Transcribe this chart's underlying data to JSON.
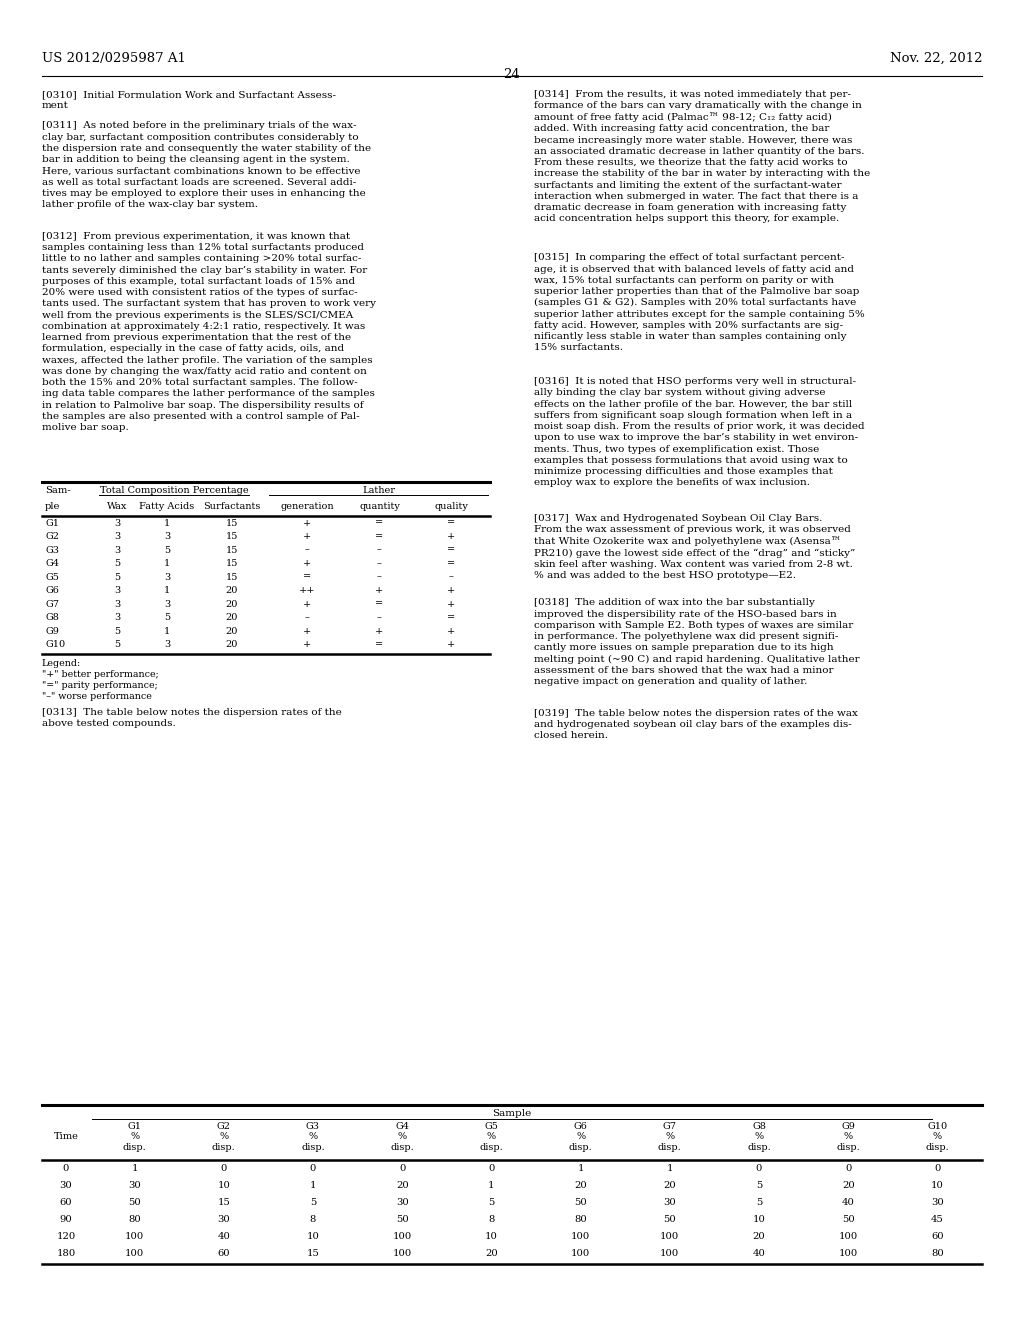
{
  "header_left": "US 2012/0295987 A1",
  "header_right": "Nov. 22, 2012",
  "page_number": "24",
  "bg_color": "#ffffff",
  "paragraphs_left": [
    "[0310]  Initial Formulation Work and Surfactant Assessment",
    "[0311]  As noted before in the preliminary trials of the wax-clay bar, surfactant composition contributes considerably to the dispersion rate and consequently the water stability of the bar in addition to being the cleansing agent in the system. Here, various surfactant combinations known to be effective as well as total surfactant loads are screened. Several additives may be employed to explore their uses in enhancing the lather profile of the wax-clay bar system.",
    "[0312]  From previous experimentation, it was known that samples containing less than 12% total surfactants produced little to no lather and samples containing >20% total surfactants severely diminished the clay bar’s stability in water. For purposes of this example, total surfactant loads of 15% and 20% were used with consistent ratios of the types of surfactants used. The surfactant system that has proven to work very well from the previous experiments is the SLES/SCI/CMEA combination at approximately 4:2:1 ratio, respectively. It was learned from previous experimentation that the rest of the formulation, especially in the case of fatty acids, oils, and waxes, affected the lather profile. The variation of the samples was done by changing the wax/fatty acid ratio and content on both the 15% and 20% total surfactant samples. The following data table compares the lather performance of the samples in relation to Palmolive bar soap. The dispersibility results of the samples are also presented with a control sample of Palmolive bar soap."
  ],
  "paragraphs_right": [
    "[0314]  From the results, it was noted immediately that performance of the bars can vary dramatically with the change in amount of free fatty acid (Palmac™ 98-12; C₁₂ fatty acid) added. With increasing fatty acid concentration, the bar became increasingly more water stable. However, there was an associated dramatic decrease in lather quantity of the bars. From these results, we theorize that the fatty acid works to increase the stability of the bar in water by interacting with the surfactants and limiting the extent of the surfactant-water interaction when submerged in water. The fact that there is a dramatic decrease in foam generation with increasing fatty acid concentration helps support this theory, for example.",
    "[0315]  In comparing the effect of total surfactant percentage, it is observed that with balanced levels of fatty acid and wax, 15% total surfactants can perform on parity or with superior lather properties than that of the Palmolive bar soap (samples G1 & G2). Samples with 20% total surfactants have superior lather attributes except for the sample containing 5% fatty acid. However, samples with 20% surfactants are significantly less stable in water than samples containing only 15% surfactants.",
    "[0316]  It is noted that HSO performs very well in structurally binding the clay bar system without giving adverse effects on the lather profile of the bar. However, the bar still suffers from significant soap slough formation when left in a moist soap dish. From the results of prior work, it was decided upon to use wax to improve the bar’s stability in wet environments. Thus, two types of exemplification exist. Those examples that possess formulations that avoid using wax to minimize processing difficulties and those examples that employ wax to explore the benefits of wax inclusion.",
    "[0317]  Wax and Hydrogenated Soybean Oil Clay Bars. From the wax assessment of previous work, it was observed that White Ozokerite wax and polyethylene wax (Asensa™ PR210) gave the lowest side effect of the “drag” and “sticky” skin feel after washing. Wax content was varied from 2-8 wt. % and was added to the best HSO prototype—E2.",
    "[0318]  The addition of wax into the bar substantially improved the dispersibility rate of the HSO-based bars in comparison with Sample E2. Both types of waxes are similar in performance. The polyethylene wax did present significantly more issues on sample preparation due to its high melting point (~90 C) and rapid hardening. Qualitative lather assessment of the bars showed that the wax had a minor negative impact on generation and quality of lather.",
    "[0319]  The table below notes the dispersion rates of the wax and hydrogenated soybean oil clay bars of the examples disclosed herein."
  ],
  "table1_data": [
    [
      "G1",
      "3",
      "1",
      "15",
      "+",
      "=",
      "="
    ],
    [
      "G2",
      "3",
      "3",
      "15",
      "+",
      "=",
      "+"
    ],
    [
      "G3",
      "3",
      "5",
      "15",
      "–",
      "–",
      "="
    ],
    [
      "G4",
      "5",
      "1",
      "15",
      "+",
      "–",
      "="
    ],
    [
      "G5",
      "5",
      "3",
      "15",
      "=",
      "–",
      "–"
    ],
    [
      "G6",
      "3",
      "1",
      "20",
      "++",
      "+",
      "+"
    ],
    [
      "G7",
      "3",
      "3",
      "20",
      "+",
      "=",
      "+"
    ],
    [
      "G8",
      "3",
      "5",
      "20",
      "–",
      "–",
      "="
    ],
    [
      "G9",
      "5",
      "1",
      "20",
      "+",
      "+",
      "+"
    ],
    [
      "G10",
      "5",
      "3",
      "20",
      "+",
      "=",
      "+"
    ]
  ],
  "table1_legend": [
    "Legend:",
    "\"+\" better performance;",
    "\"=\" parity performance;",
    "\"–\" worse performance"
  ],
  "para_0313": "[0313]  The table below notes the dispersion rates of the above tested compounds.",
  "table2_data": [
    [
      "0",
      "1",
      "0",
      "0",
      "0",
      "0",
      "1",
      "1",
      "0",
      "0",
      "0"
    ],
    [
      "30",
      "30",
      "10",
      "1",
      "20",
      "1",
      "20",
      "20",
      "5",
      "20",
      "10"
    ],
    [
      "60",
      "50",
      "15",
      "5",
      "30",
      "5",
      "50",
      "30",
      "5",
      "40",
      "30"
    ],
    [
      "90",
      "80",
      "30",
      "8",
      "50",
      "8",
      "80",
      "50",
      "10",
      "50",
      "45"
    ],
    [
      "120",
      "100",
      "40",
      "10",
      "100",
      "10",
      "100",
      "100",
      "20",
      "100",
      "60"
    ],
    [
      "180",
      "100",
      "60",
      "15",
      "100",
      "20",
      "100",
      "100",
      "40",
      "100",
      "80"
    ]
  ]
}
